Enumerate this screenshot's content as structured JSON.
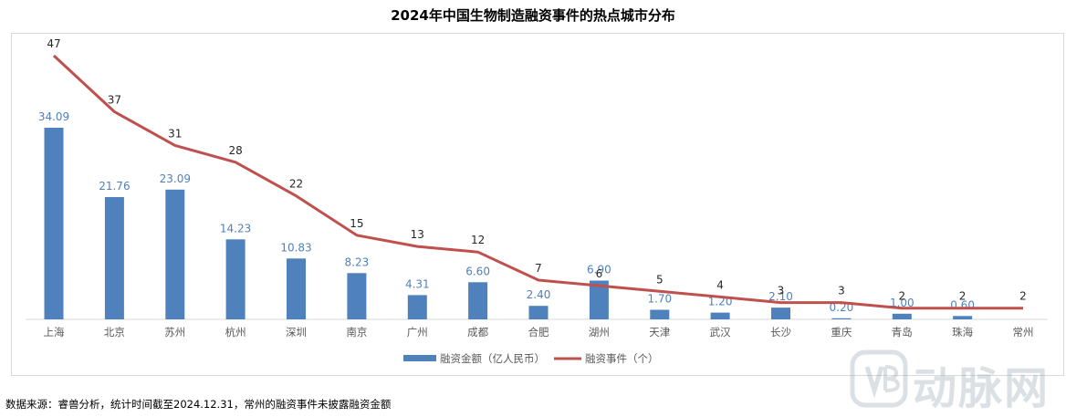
{
  "chart_data": {
    "type": "bar",
    "title": "2024年中国生物制造融资事件的热点城市分布",
    "categories": [
      "上海",
      "北京",
      "苏州",
      "杭州",
      "深圳",
      "南京",
      "广州",
      "成都",
      "合肥",
      "湖州",
      "天津",
      "武汉",
      "长沙",
      "重庆",
      "青岛",
      "珠海",
      "常州"
    ],
    "series": [
      {
        "name": "融资金额（亿人民币）",
        "type": "bar",
        "color": "#4f81bd",
        "values": [
          34.09,
          21.76,
          23.09,
          14.23,
          10.83,
          8.23,
          4.31,
          6.6,
          2.4,
          6.9,
          1.7,
          1.2,
          2.1,
          0.2,
          1.0,
          0.6,
          null
        ],
        "labels": [
          "34.09",
          "21.76",
          "23.09",
          "14.23",
          "10.83",
          "8.23",
          "4.31",
          "6.60",
          "2.40",
          "6.90",
          "1.70",
          "1.20",
          "2.10",
          "0.20",
          "1.00",
          "0.60",
          ""
        ]
      },
      {
        "name": "融资事件（个）",
        "type": "line",
        "color": "#c0504d",
        "values": [
          47,
          37,
          31,
          28,
          22,
          15,
          13,
          12,
          7,
          6,
          5,
          4,
          3,
          3,
          2,
          2,
          2
        ],
        "labels": [
          "47",
          "37",
          "31",
          "28",
          "22",
          "15",
          "13",
          "12",
          "7",
          "6",
          "5",
          "4",
          "3",
          "3",
          "2",
          "2",
          "2"
        ]
      }
    ],
    "legend": "bottom-center",
    "grid": false
  },
  "footnote": "数据来源：睿兽分析，统计时间截至2024.12.31，常州的融资事件未披露融资金额",
  "watermark": "动脉网"
}
